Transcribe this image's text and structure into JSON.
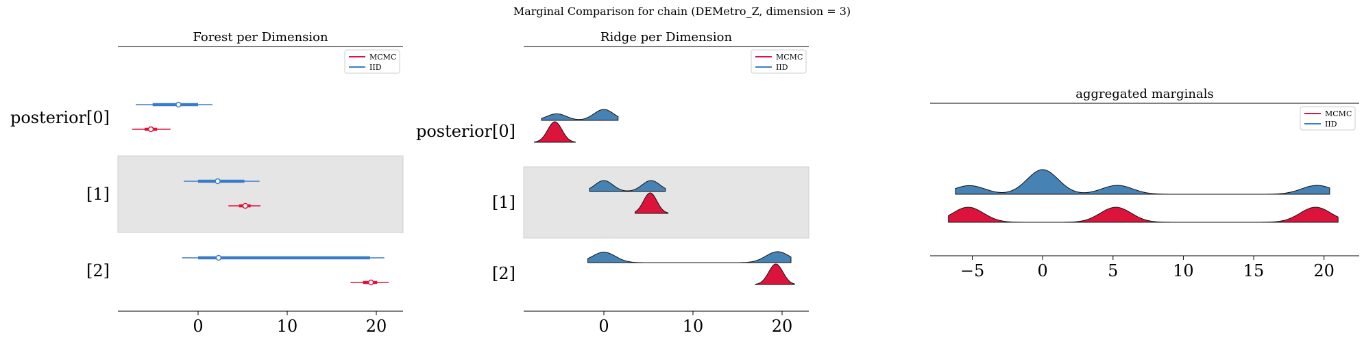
{
  "suptitle": "Marginal Comparison for chain (DEMetro_Z, dimension = 3)",
  "colors": {
    "mcmc": "#dc143c",
    "iid": "#4682b4",
    "iid_line": "#3a7bc8",
    "shade": "#e5e5e5"
  },
  "legend": {
    "mcmc": "MCMC",
    "iid": "IID"
  },
  "chart_data": [
    {
      "type": "forest",
      "title": "Forest per Dimension",
      "xlabel": "",
      "ylabel": "",
      "xlim": [
        -9,
        23
      ],
      "xticks": [
        0,
        10,
        20
      ],
      "rows": [
        "posterior[0]",
        "[1]",
        "[2]"
      ],
      "shaded_rows": [
        1
      ],
      "legend_position": "upper right",
      "series": [
        {
          "name": "IID",
          "intervals": [
            {
              "row": 0,
              "hdi_low": -7.0,
              "hdi_high": 1.6,
              "iqr_low": -5.1,
              "iqr_high": 0.0,
              "median": -2.2
            },
            {
              "row": 1,
              "hdi_low": -1.6,
              "hdi_high": 6.9,
              "iqr_low": 0.0,
              "iqr_high": 5.2,
              "median": 2.2
            },
            {
              "row": 2,
              "hdi_low": -1.8,
              "hdi_high": 20.9,
              "iqr_low": 0.0,
              "iqr_high": 19.3,
              "median": 2.3
            }
          ]
        },
        {
          "name": "MCMC",
          "intervals": [
            {
              "row": 0,
              "hdi_low": -7.4,
              "hdi_high": -3.1,
              "iqr_low": -6.0,
              "iqr_high": -4.6,
              "median": -5.3
            },
            {
              "row": 1,
              "hdi_low": 3.4,
              "hdi_high": 7.0,
              "iqr_low": 4.6,
              "iqr_high": 5.9,
              "median": 5.3
            },
            {
              "row": 2,
              "hdi_low": 17.1,
              "hdi_high": 21.4,
              "iqr_low": 18.5,
              "iqr_high": 20.1,
              "median": 19.4
            }
          ]
        }
      ]
    },
    {
      "type": "ridge",
      "title": "Ridge per Dimension",
      "xlabel": "",
      "ylabel": "",
      "xlim": [
        -9,
        23
      ],
      "xticks": [
        0,
        10,
        20
      ],
      "rows": [
        "posterior[0]",
        "[1]",
        "[2]"
      ],
      "shaded_rows": [
        1
      ],
      "legend_position": "upper right",
      "series": [
        {
          "name": "IID",
          "ridges": [
            {
              "row": 0,
              "range": [
                -7.0,
                1.6
              ],
              "modes": [
                {
                  "mu": -5.3,
                  "sigma": 1.1,
                  "w": 0.6
                },
                {
                  "mu": 0.0,
                  "sigma": 1.1,
                  "w": 1.0
                }
              ]
            },
            {
              "row": 1,
              "range": [
                -1.6,
                6.9
              ],
              "modes": [
                {
                  "mu": 0.0,
                  "sigma": 1.0,
                  "w": 1.0
                },
                {
                  "mu": 5.3,
                  "sigma": 1.0,
                  "w": 1.0
                }
              ]
            },
            {
              "row": 2,
              "range": [
                -1.8,
                21.0
              ],
              "modes": [
                {
                  "mu": 0.0,
                  "sigma": 1.3,
                  "w": 1.0
                },
                {
                  "mu": 19.5,
                  "sigma": 1.3,
                  "w": 1.05
                }
              ]
            }
          ]
        },
        {
          "name": "MCMC",
          "ridges": [
            {
              "row": 0,
              "range": [
                -7.8,
                -3.2
              ],
              "modes": [
                {
                  "mu": -5.5,
                  "sigma": 0.8,
                  "w": 1.0
                }
              ]
            },
            {
              "row": 1,
              "range": [
                3.5,
                7.2
              ],
              "modes": [
                {
                  "mu": 5.2,
                  "sigma": 0.75,
                  "w": 1.0
                }
              ]
            },
            {
              "row": 2,
              "range": [
                17.0,
                21.4
              ],
              "modes": [
                {
                  "mu": 19.3,
                  "sigma": 0.8,
                  "w": 1.0
                }
              ]
            }
          ]
        }
      ]
    },
    {
      "type": "ridge",
      "title": "aggregated marginals",
      "xlabel": "",
      "ylabel": "",
      "xlim": [
        -8,
        22.5
      ],
      "xticks": [
        -5,
        0,
        5,
        10,
        15,
        20
      ],
      "legend_position": "upper right",
      "series": [
        {
          "name": "IID",
          "range": [
            -6.2,
            20.4
          ],
          "modes": [
            {
              "mu": -5.2,
              "sigma": 1.1,
              "w": 0.35
            },
            {
              "mu": 0.0,
              "sigma": 1.1,
              "w": 1.0
            },
            {
              "mu": 5.3,
              "sigma": 1.1,
              "w": 0.36
            },
            {
              "mu": 19.5,
              "sigma": 1.1,
              "w": 0.36
            }
          ]
        },
        {
          "name": "MCMC",
          "range": [
            -6.7,
            21.0
          ],
          "modes": [
            {
              "mu": -5.3,
              "sigma": 1.1,
              "w": 1.0
            },
            {
              "mu": 5.2,
              "sigma": 1.1,
              "w": 1.0
            },
            {
              "mu": 19.4,
              "sigma": 1.1,
              "w": 1.0
            }
          ]
        }
      ]
    }
  ]
}
